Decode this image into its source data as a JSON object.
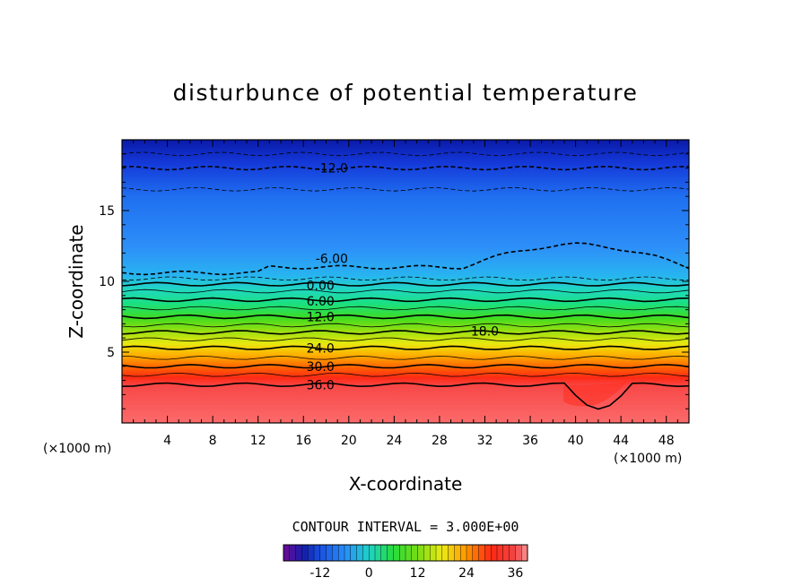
{
  "chart_data": {
    "type": "heatmap",
    "title": "disturbunce of potential temperature",
    "xlabel": "X-coordinate",
    "ylabel": "Z-coordinate",
    "x_units": "(×1000 m)",
    "y_units": "(×1000 m)",
    "xlim": [
      0,
      50
    ],
    "ylim": [
      0,
      20
    ],
    "x_ticks": [
      4,
      8,
      12,
      16,
      20,
      24,
      28,
      32,
      36,
      40,
      44,
      48
    ],
    "y_ticks": [
      5,
      10,
      15
    ],
    "contour_interval_text": "CONTOUR INTERVAL = 3.000E+00",
    "contour_interval": 3.0,
    "value_range": [
      -21,
      39
    ],
    "contour_labels": [
      {
        "text": "-12.0",
        "x": 18.5,
        "z": 18.0,
        "value": -12
      },
      {
        "text": "-6.00",
        "x": 18.5,
        "z": 11.6,
        "value": -6
      },
      {
        "text": "0.00",
        "x": 17.5,
        "z": 9.7,
        "value": 0
      },
      {
        "text": "6.00",
        "x": 17.5,
        "z": 8.6,
        "value": 6
      },
      {
        "text": "12.0",
        "x": 17.5,
        "z": 7.5,
        "value": 12
      },
      {
        "text": "18.0",
        "x": 32.0,
        "z": 6.5,
        "value": 18
      },
      {
        "text": "24.0",
        "x": 17.5,
        "z": 5.3,
        "value": 24
      },
      {
        "text": "30.0",
        "x": 17.5,
        "z": 4.0,
        "value": 30
      },
      {
        "text": "36.0",
        "x": 17.5,
        "z": 2.7,
        "value": 36
      }
    ],
    "colorbar": {
      "tick_labels": [
        "-12",
        "0",
        "12",
        "24",
        "36"
      ],
      "tick_values": [
        -12,
        0,
        12,
        24,
        36
      ],
      "range": [
        -21,
        39
      ]
    }
  }
}
